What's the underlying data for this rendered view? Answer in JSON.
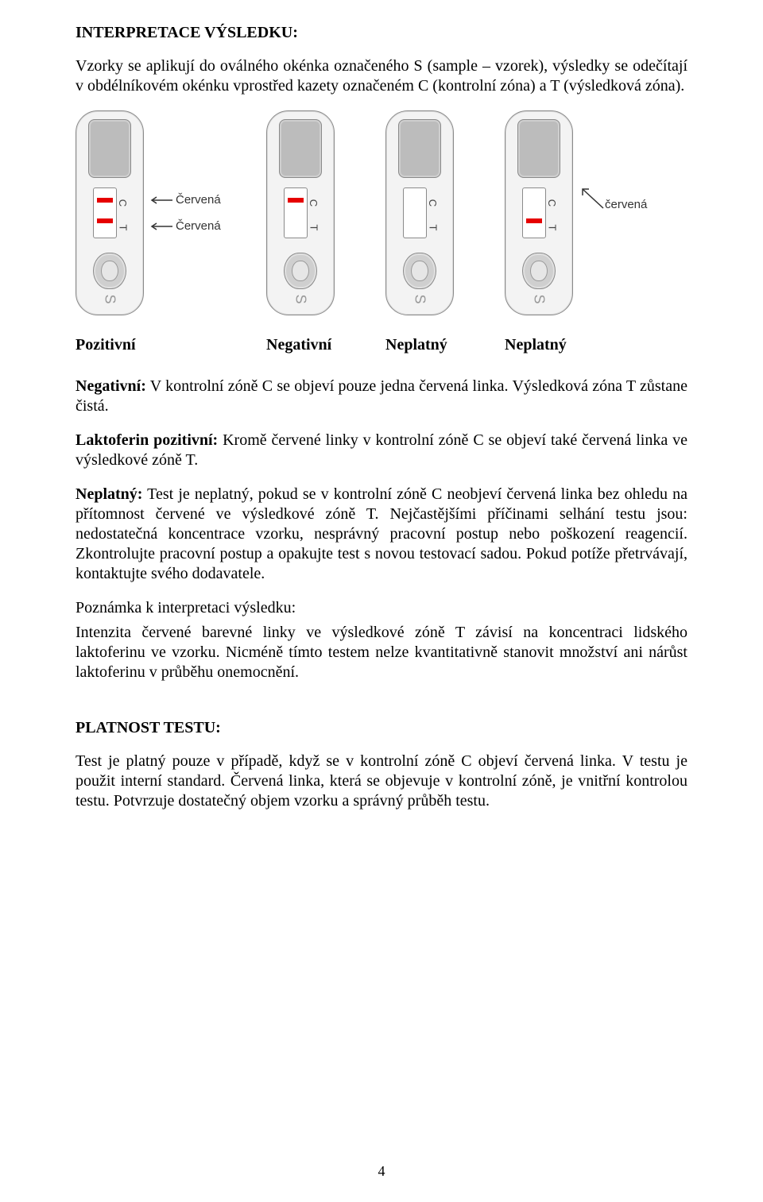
{
  "section1": {
    "title": "INTERPRETACE VÝSLEDKU:",
    "intro": "Vzorky se aplikují do oválného okénka označeného S (sample – vzorek), výsledky se odečítají v obdélníkovém okénku vprostřed kazety označeném C (kontrolní zóna) a T (výsledková zóna)."
  },
  "figure": {
    "cassettes": [
      {
        "show_c": true,
        "show_t": true,
        "side_labels": [
          "Červená",
          "Červená"
        ],
        "arrow_count": 2
      },
      {
        "show_c": true,
        "show_t": false,
        "side_labels": [],
        "arrow_count": 0
      },
      {
        "show_c": false,
        "show_t": false,
        "side_labels": [],
        "arrow_count": 0
      },
      {
        "show_c": false,
        "show_t": true,
        "side_labels": [
          "červená"
        ],
        "arrow_count": 1
      }
    ],
    "ct_letters": {
      "c": "C",
      "t": "T"
    },
    "s_letter": "S",
    "captions": [
      "Pozitivní",
      "Negativní",
      "Neplatný",
      "Neplatný"
    ],
    "colors": {
      "line": "#e60000",
      "cassette_bg": "#f3f3f3",
      "cassette_border": "#8a8a8a",
      "window_bg": "#bcbcbc"
    }
  },
  "defs": {
    "negative_label": "Negativní:",
    "negative_text": " V kontrolní zóně C se objeví pouze jedna červená linka. Výsledková zóna T zůstane čistá.",
    "positive_label": "Laktoferin pozitivní:",
    "positive_text": " Kromě červené linky v kontrolní zóně C se objeví také červená linka ve výsledkové zóně T.",
    "invalid_label": "Neplatný:",
    "invalid_text": " Test je neplatný, pokud se v kontrolní zóně C neobjeví červená linka bez ohledu na přítomnost červené ve výsledkové zóně T. Nejčastějšími příčinami selhání testu jsou: nedostatečná koncentrace vzorku, nesprávný pracovní postup nebo poškození reagencií. Zkontrolujte pracovní postup a opakujte test s novou testovací sadou. Pokud potíže přetrvávají, kontaktujte svého dodavatele.",
    "note_title": "Poznámka k interpretaci výsledku:",
    "note_text": "Intenzita červené barevné linky ve výsledkové zóně T závisí na koncentraci lidského laktoferinu ve vzorku. Nicméně tímto testem nelze kvantitativně stanovit množství ani nárůst laktoferinu v průběhu onemocnění."
  },
  "section2": {
    "title": "PLATNOST TESTU:",
    "text": "Test je platný pouze v případě, když se v kontrolní zóně C objeví červená linka. V testu je použit interní standard. Červená linka, která se objevuje v kontrolní zóně, je vnitřní kontrolou testu. Potvrzuje dostatečný objem vzorku a správný průběh testu."
  },
  "page_number": "4"
}
